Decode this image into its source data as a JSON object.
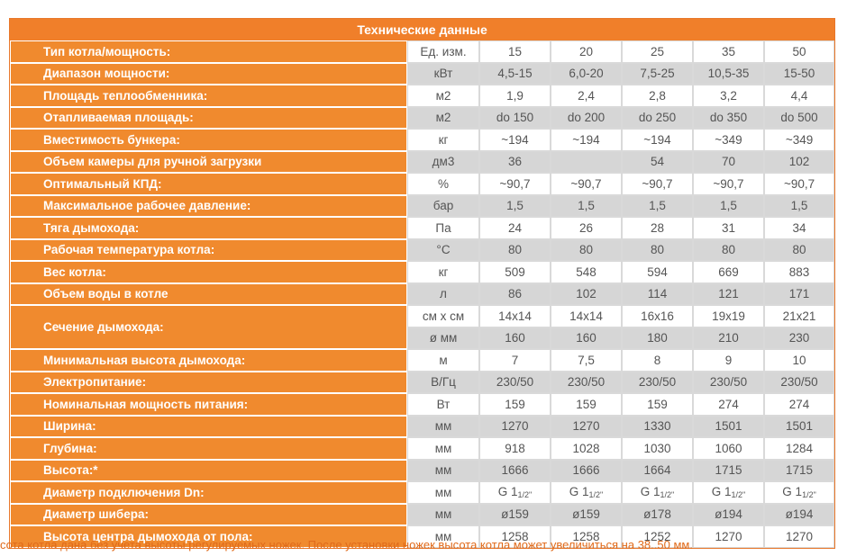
{
  "title": "Технические данные",
  "header": {
    "label": "Тип котла/мощность:",
    "unit": "Ед. изм.",
    "values": [
      "15",
      "20",
      "25",
      "35",
      "50"
    ]
  },
  "rows": [
    {
      "label": "Диапазон мощности:",
      "unit": "кВт",
      "values": [
        "4,5-15",
        "6,0-20",
        "7,5-25",
        "10,5-35",
        "15-50"
      ]
    },
    {
      "label": "Площадь теплообменника:",
      "unit": "м2",
      "values": [
        "1,9",
        "2,4",
        "2,8",
        "3,2",
        "4,4"
      ]
    },
    {
      "label": "Отапливаемая площадь:",
      "unit": "м2",
      "values": [
        "do 150",
        "do 200",
        "do 250",
        "do 350",
        "do 500"
      ]
    },
    {
      "label": "Вместимость бункера:",
      "unit": "кг",
      "values": [
        "~194",
        "~194",
        "~194",
        "~349",
        "~349"
      ]
    },
    {
      "label": "Объем камеры для ручной загрузки",
      "unit": "дм3",
      "values": [
        "36",
        "",
        "54",
        "70",
        "102"
      ]
    },
    {
      "label": "Оптимальный КПД:",
      "unit": "%",
      "values": [
        "~90,7",
        "~90,7",
        "~90,7",
        "~90,7",
        "~90,7"
      ]
    },
    {
      "label": "Максимальное рабочее давление:",
      "unit": "бар",
      "values": [
        "1,5",
        "1,5",
        "1,5",
        "1,5",
        "1,5"
      ]
    },
    {
      "label": "Тяга дымохода:",
      "unit": "Па",
      "values": [
        "24",
        "26",
        "28",
        "31",
        "34"
      ]
    },
    {
      "label": "Рабочая температура котла:",
      "unit": "°C",
      "values": [
        "80",
        "80",
        "80",
        "80",
        "80"
      ]
    },
    {
      "label": "Вес котла:",
      "unit": "кг",
      "values": [
        "509",
        "548",
        "594",
        "669",
        "883"
      ]
    },
    {
      "label": "Объем воды в котле",
      "unit": "л",
      "values": [
        "86",
        "102",
        "114",
        "121",
        "171"
      ]
    }
  ],
  "flue_section": {
    "label": "Сечение дымохода:",
    "sub": [
      {
        "unit": "см х см",
        "values": [
          "14x14",
          "14x14",
          "16x16",
          "19x19",
          "21x21"
        ]
      },
      {
        "unit": "ø мм",
        "values": [
          "160",
          "160",
          "180",
          "210",
          "230"
        ]
      }
    ]
  },
  "rows2": [
    {
      "label": "Минимальная высота дымохода:",
      "unit": "м",
      "values": [
        "7",
        "7,5",
        "8",
        "9",
        "10"
      ]
    },
    {
      "label": "Электропитание:",
      "unit": "В/Гц",
      "values": [
        "230/50",
        "230/50",
        "230/50",
        "230/50",
        "230/50"
      ]
    },
    {
      "label": "Номинальная мощность питания:",
      "unit": "Вт",
      "values": [
        "159",
        "159",
        "159",
        "274",
        "274"
      ]
    },
    {
      "label": "Ширина:",
      "unit": "мм",
      "values": [
        "1270",
        "1270",
        "1330",
        "1501",
        "1501"
      ]
    },
    {
      "label": "Глубина:",
      "unit": "мм",
      "values": [
        "918",
        "1028",
        "1030",
        "1060",
        "1284"
      ]
    },
    {
      "label": "Высота:*",
      "unit": "мм",
      "values": [
        "1666",
        "1666",
        "1664",
        "1715",
        "1715"
      ]
    }
  ],
  "connection": {
    "label": "Диаметр подключения Dn:",
    "unit": "мм",
    "prefix": "G 1",
    "sub": "1/2\"",
    "count": 5
  },
  "rows3": [
    {
      "label": "Диаметр шибера:",
      "unit": "мм",
      "values": [
        "ø159",
        "ø159",
        "ø178",
        "ø194",
        "ø194"
      ]
    },
    {
      "label": "Высота центра дымохода от пола:",
      "unit": "мм",
      "values": [
        "1258",
        "1258",
        "1252",
        "1270",
        "1270"
      ]
    }
  ],
  "footnote": "сота котла дана без учета высоты регулируемых ножек. После установки ножек высота котла может увеличиться на 38..50 мм."
}
